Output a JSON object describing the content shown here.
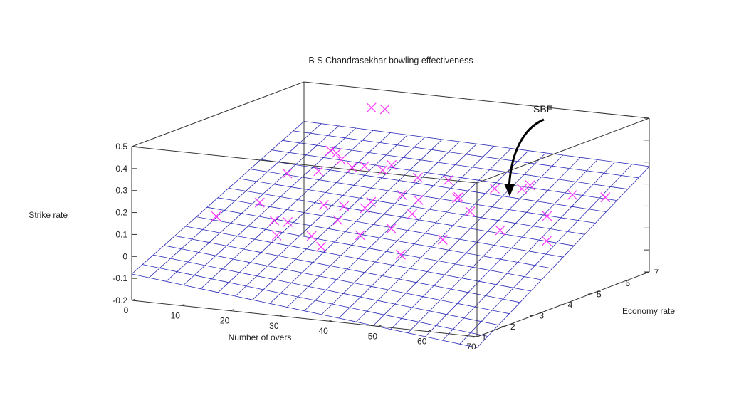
{
  "chart_data": {
    "type": "scatter",
    "title": "B S Chandrasekhar bowling effectiveness",
    "xlabel": "Number of overs",
    "ylabel": "Economy rate",
    "zlabel": "Strike rate",
    "xlim": [
      0,
      70
    ],
    "ylim": [
      1,
      7
    ],
    "zlim": [
      -0.2,
      0.5
    ],
    "x_ticks": [
      "0",
      "10",
      "20",
      "30",
      "40",
      "50",
      "60",
      "70"
    ],
    "y_ticks": [
      "1",
      "2",
      "3",
      "4",
      "5",
      "6",
      "7"
    ],
    "z_ticks": [
      "-0.2",
      "-0.1",
      "0",
      "0.1",
      "0.2",
      "0.3",
      "0.4",
      "0.5"
    ],
    "annotation": "SBE",
    "marker_color": "#ff33ff",
    "surface_color": "#2b2bb8",
    "surface": {
      "x_steps": 20,
      "y_steps": 16,
      "z_min_corner": -0.08,
      "z_near_far": 0.32,
      "z_far_near": 0.47,
      "z_far_far": 0.28
    },
    "points": [
      {
        "x": 2,
        "y": 3.6,
        "z": 0.06
      },
      {
        "x": 5,
        "y": 4.6,
        "z": 0.08
      },
      {
        "x": 10,
        "y": 4.7,
        "z": 0.22
      },
      {
        "x": 10,
        "y": 6.2,
        "z": 0.25
      },
      {
        "x": 11,
        "y": 6.4,
        "z": 0.2
      },
      {
        "x": 12,
        "y": 3.9,
        "z": 0.05
      },
      {
        "x": 13,
        "y": 4.2,
        "z": 0.03
      },
      {
        "x": 13,
        "y": 5.9,
        "z": 0.26
      },
      {
        "x": 14,
        "y": 5.1,
        "z": 0.22
      },
      {
        "x": 15,
        "y": 6.1,
        "z": 0.19
      },
      {
        "x": 16,
        "y": 3.3,
        "z": 0.02
      },
      {
        "x": 16,
        "y": 6.6,
        "z": 0.44
      },
      {
        "x": 17,
        "y": 6.9,
        "z": 0.42
      },
      {
        "x": 18,
        "y": 5.3,
        "z": 0.06
      },
      {
        "x": 18,
        "y": 4.6,
        "z": 0.1
      },
      {
        "x": 19,
        "y": 4.0,
        "z": -0.01
      },
      {
        "x": 20,
        "y": 6.3,
        "z": 0.18
      },
      {
        "x": 21,
        "y": 5.5,
        "z": 0.24
      },
      {
        "x": 22,
        "y": 4.4,
        "z": 0.05
      },
      {
        "x": 23,
        "y": 6.1,
        "z": 0.22
      },
      {
        "x": 24,
        "y": 5.0,
        "z": 0.08
      },
      {
        "x": 25,
        "y": 3.3,
        "z": -0.01
      },
      {
        "x": 26,
        "y": 6.5,
        "z": 0.15
      },
      {
        "x": 27,
        "y": 4.7,
        "z": 0.13
      },
      {
        "x": 28,
        "y": 5.6,
        "z": 0.12
      },
      {
        "x": 29,
        "y": 6.0,
        "z": 0.08
      },
      {
        "x": 30,
        "y": 3.8,
        "z": 0.03
      },
      {
        "x": 31,
        "y": 6.7,
        "z": 0.14
      },
      {
        "x": 33,
        "y": 5.1,
        "z": 0.07
      },
      {
        "x": 34,
        "y": 4.2,
        "z": 0.05
      },
      {
        "x": 36,
        "y": 6.2,
        "z": 0.1
      },
      {
        "x": 38,
        "y": 5.8,
        "z": 0.12
      },
      {
        "x": 40,
        "y": 3.5,
        "z": -0.02
      },
      {
        "x": 41,
        "y": 6.6,
        "z": 0.13
      },
      {
        "x": 43,
        "y": 5.4,
        "z": 0.09
      },
      {
        "x": 45,
        "y": 4.1,
        "z": 0.03
      },
      {
        "x": 47,
        "y": 6.8,
        "z": 0.15
      },
      {
        "x": 50,
        "y": 6.0,
        "z": 0.18
      },
      {
        "x": 52,
        "y": 4.9,
        "z": 0.05
      },
      {
        "x": 55,
        "y": 6.9,
        "z": 0.12
      },
      {
        "x": 58,
        "y": 5.5,
        "z": 0.1
      },
      {
        "x": 62,
        "y": 4.8,
        "z": 0.03
      },
      {
        "x": 64,
        "y": 6.5,
        "z": 0.15
      }
    ]
  }
}
